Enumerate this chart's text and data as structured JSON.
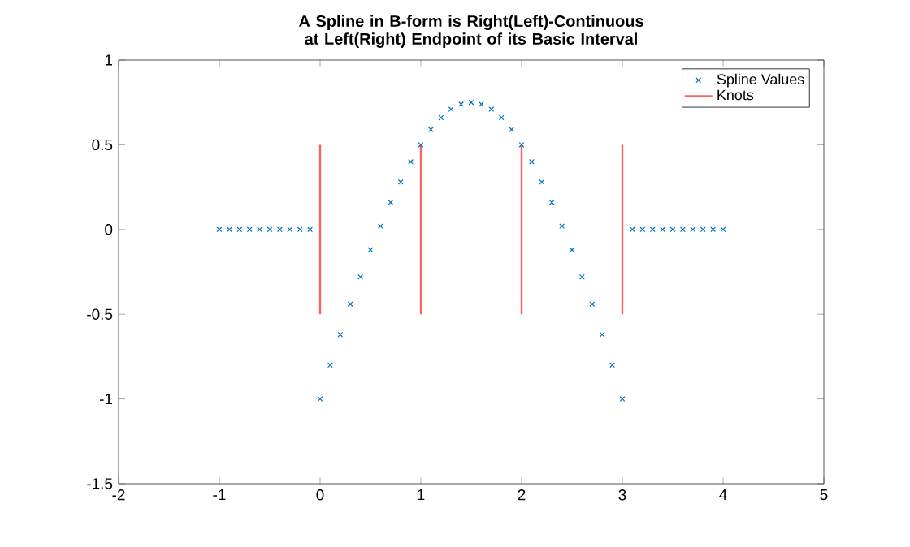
{
  "chart_data": {
    "type": "scatter",
    "title": "A Spline in B-form is Right(Left)-Continuous at Left(Right) Endpoint of its Basic Interval",
    "xlim": [
      -2,
      5
    ],
    "ylim": [
      -1.5,
      1
    ],
    "xticks": [
      -2,
      -1,
      0,
      1,
      2,
      3,
      4,
      5
    ],
    "yticks": [
      -1.5,
      -1,
      -0.5,
      0,
      0.5,
      1
    ],
    "legend": "top right",
    "marker": "cross",
    "grid": false,
    "series": [
      {
        "name": "Spline Values",
        "color": "#0072bd",
        "x": [
          -1,
          -0.9,
          -0.8,
          -0.7,
          -0.6,
          -0.5,
          -0.4,
          -0.3,
          -0.2,
          -0.1,
          0,
          0.1,
          0.2,
          0.3,
          0.4,
          0.5,
          0.6,
          0.7,
          0.8,
          0.9,
          1,
          1.1,
          1.2,
          1.3,
          1.4,
          1.5,
          1.6,
          1.7,
          1.8,
          1.9,
          2,
          2.1,
          2.2,
          2.3,
          2.4,
          2.5,
          2.6,
          2.7,
          2.8,
          2.9,
          3,
          3.1,
          3.2,
          3.3,
          3.4,
          3.5,
          3.6,
          3.7,
          3.8,
          3.9,
          4
        ],
        "values": [
          0,
          0,
          0,
          0,
          0,
          0,
          0,
          0,
          0,
          0,
          -1,
          -0.8,
          -0.62,
          -0.44,
          -0.28,
          -0.12,
          0.02,
          0.16,
          0.28,
          0.4,
          0.5,
          0.59,
          0.66,
          0.71,
          0.74,
          0.75,
          0.74,
          0.71,
          0.66,
          0.59,
          0.5,
          0.4,
          0.28,
          0.16,
          0.02,
          -0.12,
          -0.28,
          -0.44,
          -0.62,
          -0.8,
          -1,
          0,
          0,
          0,
          0,
          0,
          0,
          0,
          0,
          0,
          0
        ]
      },
      {
        "name": "Knots",
        "type": "line",
        "marker": "none",
        "color": "#ff6060",
        "x": [
          0,
          0
        ],
        "values": [
          -0.5,
          0.5
        ]
      },
      {
        "type": "line",
        "marker": "none",
        "color": "#ff6060",
        "x": [
          1,
          1
        ],
        "values": [
          -0.5,
          0.5
        ]
      },
      {
        "type": "line",
        "marker": "none",
        "color": "#ff6060",
        "x": [
          2,
          2
        ],
        "values": [
          -0.5,
          0.5
        ]
      },
      {
        "type": "line",
        "marker": "none",
        "color": "#ff6060",
        "x": [
          3,
          3
        ],
        "values": [
          -0.5,
          0.5
        ]
      }
    ]
  }
}
